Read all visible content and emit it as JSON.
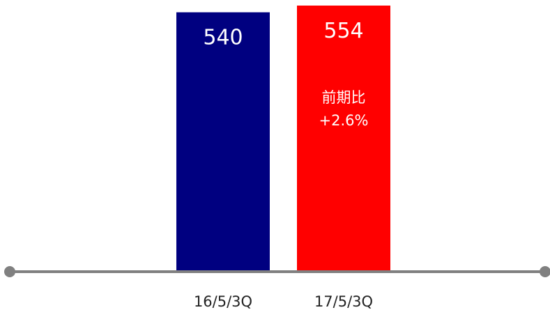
{
  "chart_data": {
    "type": "bar",
    "title": "",
    "xlabel": "",
    "ylabel": "",
    "categories": [
      "16/5/3Q",
      "17/5/3Q"
    ],
    "values": [
      540,
      554
    ],
    "value_labels": [
      "540",
      "554"
    ],
    "bar_colors": [
      "#000080",
      "#ff0000"
    ],
    "annotation": {
      "category": "17/5/3Q",
      "lines": [
        "前期比",
        "+2.6%"
      ]
    },
    "ylim": [
      0,
      554
    ],
    "grid": false,
    "legend": "none",
    "axis_color": "#808080"
  }
}
